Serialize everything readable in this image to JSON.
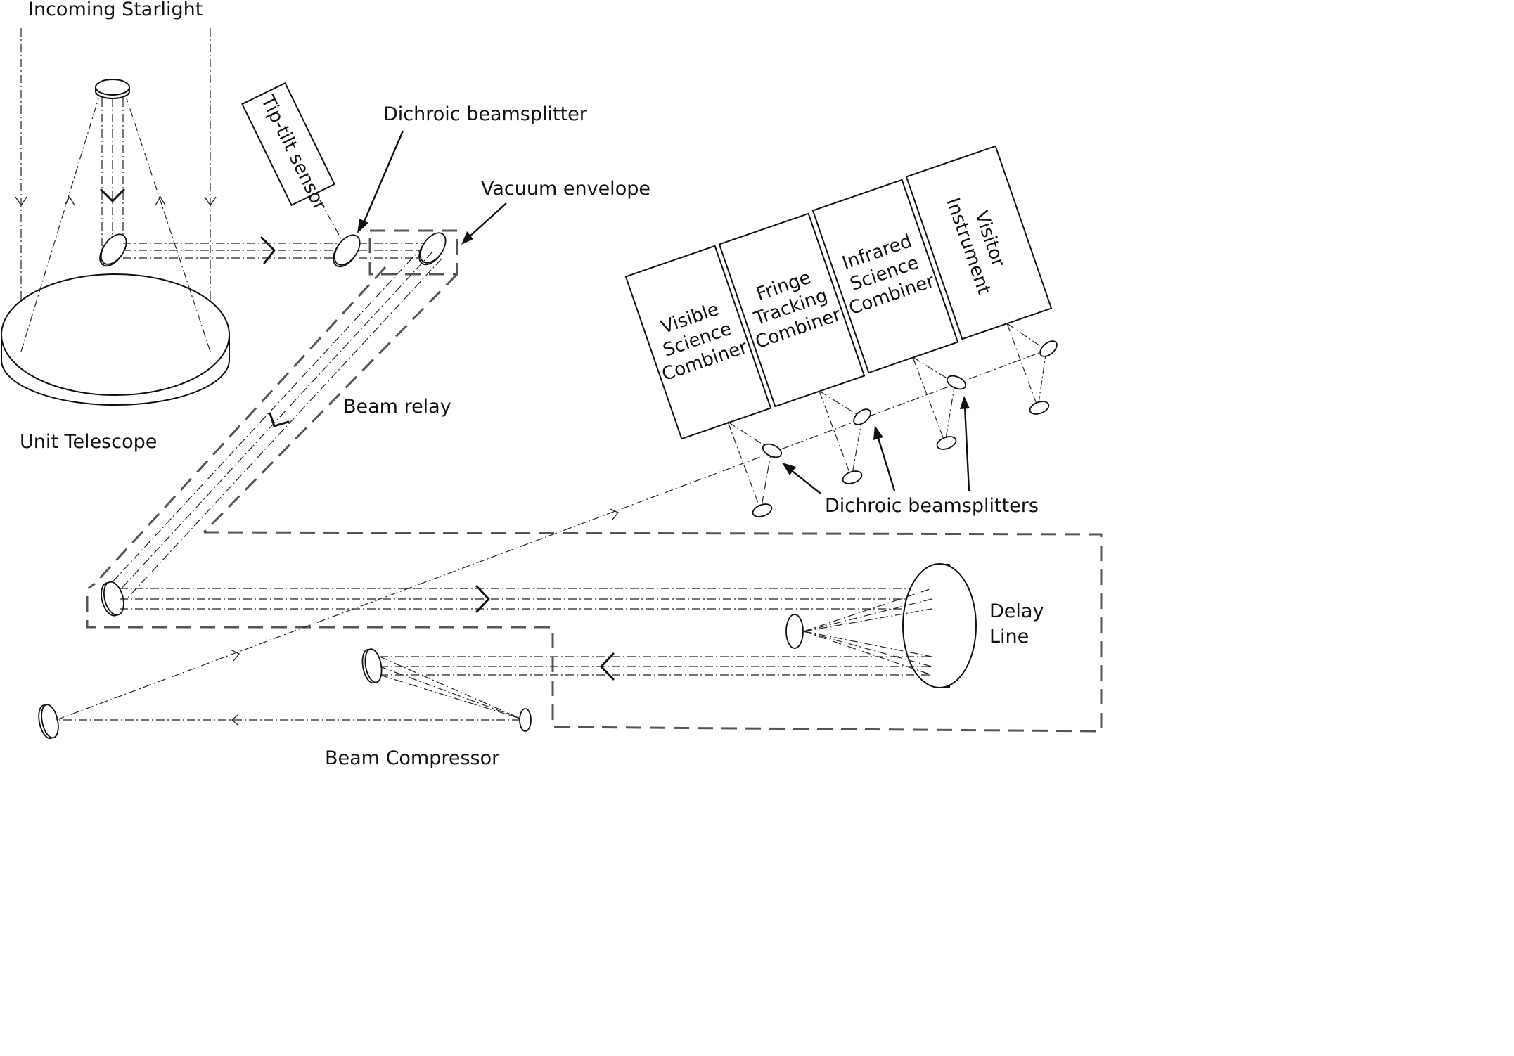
{
  "labels": {
    "incoming_starlight": "Incoming Starlight",
    "unit_telescope": "Unit Telescope",
    "tip_tilt_sensor": "Tip-tilt sensor",
    "dichroic_beamsplitter": "Dichroic beamsplitter",
    "vacuum_envelope": "Vacuum envelope",
    "beam_relay": "Beam relay",
    "delay_line_1": "Delay",
    "delay_line_2": "Line",
    "beam_compressor": "Beam Compressor",
    "dichroic_beamsplitters": "Dichroic beamsplitters"
  },
  "instruments": [
    {
      "lines": [
        "Visible",
        "Science",
        "Combiner"
      ]
    },
    {
      "lines": [
        "Fringe",
        "Tracking",
        "Combiner"
      ]
    },
    {
      "lines": [
        "Infrared",
        "Science",
        "Combiner"
      ]
    },
    {
      "lines": [
        "Visitor",
        "Instrument"
      ]
    }
  ]
}
